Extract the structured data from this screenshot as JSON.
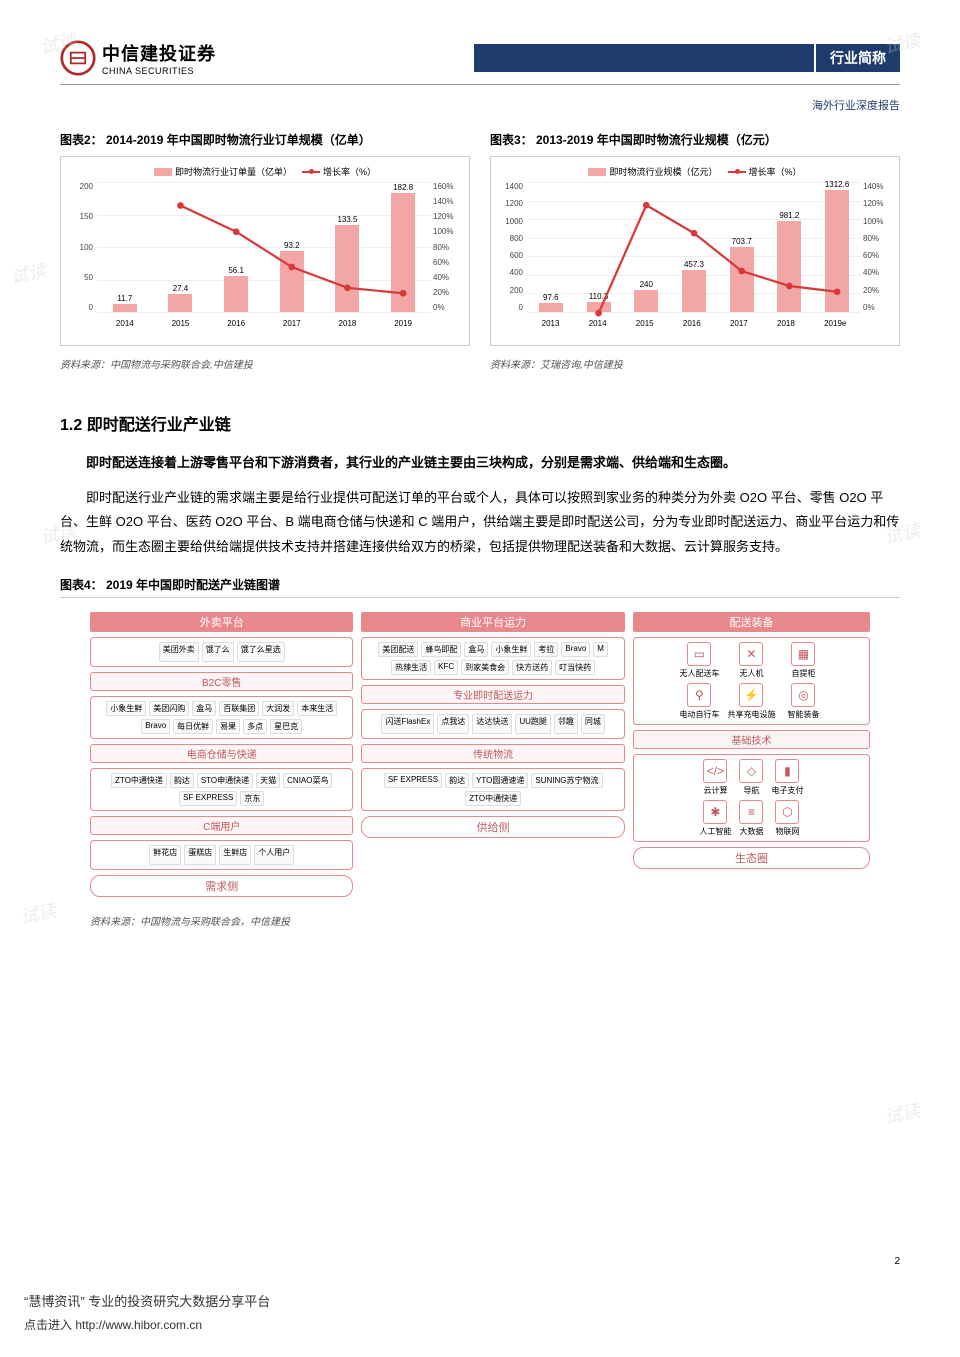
{
  "header": {
    "logo_cn": "中信建投证券",
    "logo_en": "CHINA SECURITIES",
    "tag": "行业简称",
    "subtitle": "海外行业深度报告"
  },
  "chart2": {
    "title": "图表2：  2014-2019 年中国即时物流行业订单规模（亿单）",
    "type": "bar+line",
    "legend_bar": "即时物流行业订单量（亿单）",
    "legend_line": "增长率（%）",
    "years": [
      "2014",
      "2015",
      "2016",
      "2017",
      "2018",
      "2019"
    ],
    "bars": [
      11.7,
      27.4,
      56.1,
      93.2,
      133.5,
      182.8
    ],
    "bar_labels": [
      "11.7",
      "27.4",
      "56.1",
      "93.2",
      "133.5",
      "182.8"
    ],
    "y_left_max": 200,
    "y_left_step": 50,
    "y_left_ticks": [
      "200",
      "150",
      "100",
      "50",
      "0"
    ],
    "y_right_ticks": [
      "160%",
      "140%",
      "120%",
      "100%",
      "80%",
      "60%",
      "40%",
      "20%",
      "0%"
    ],
    "y_right_max": 160,
    "line_values": [
      null,
      134,
      105,
      66,
      43,
      37
    ],
    "bar_color": "#f2a6a6",
    "line_color": "#d93838",
    "grid_color": "#eeeeee",
    "source": "资料来源：中国物流与采购联合会,中信建投"
  },
  "chart3": {
    "title": "图表3：  2013-2019 年中国即时物流行业规模（亿元）",
    "type": "bar+line",
    "legend_bar": "即时物流行业规模（亿元）",
    "legend_line": "增长率（%）",
    "years": [
      "2013",
      "2014",
      "2015",
      "2016",
      "2017",
      "2018",
      "2019e"
    ],
    "bars": [
      97.6,
      110.3,
      240,
      457.3,
      703.7,
      981.2,
      1312.6
    ],
    "bar_labels": [
      "97.6",
      "110.3",
      "240",
      "457.3",
      "703.7",
      "981.2",
      "1312.6"
    ],
    "y_left_max": 1400,
    "y_left_step": 200,
    "y_left_ticks": [
      "1400",
      "1200",
      "1000",
      "800",
      "600",
      "400",
      "200",
      "0"
    ],
    "y_right_ticks": [
      "140%",
      "120%",
      "100%",
      "80%",
      "60%",
      "40%",
      "20%",
      "0%"
    ],
    "y_right_max": 140,
    "line_values": [
      null,
      13.1,
      117.6,
      90.5,
      53.9,
      39.4,
      33.8
    ],
    "line_labels": [
      "",
      "13.1%",
      "117.6%",
      "90.5%",
      "53.9%",
      "39.4%",
      "33.8%"
    ],
    "bar_color": "#f2a6a6",
    "line_color": "#d93838",
    "source": "资料来源：艾瑞咨询,中信建投"
  },
  "section": {
    "title": "1.2 即时配送行业产业链",
    "p1": "即时配送连接着上游零售平台和下游消费者，其行业的产业链主要由三块构成，分别是需求端、供给端和生态圈。",
    "p2": "即时配送行业产业链的需求端主要是给行业提供可配送订单的平台或个人，具体可以按照到家业务的种类分为外卖 O2O 平台、零售 O2O 平台、生鲜 O2O 平台、医药 O2O 平台、B 端电商仓储与快递和 C 端用户，供给端主要是即时配送公司，分为专业即时配送运力、商业平台运力和传统物流，而生态圈主要给供给端提供技术支持并搭建连接供给双方的桥梁，包括提供物理配送装备和大数据、云计算服务支持。"
  },
  "fig4": {
    "title": "图表4：  2019 年中国即时配送产业链图谱",
    "source": "资料来源：中国物流与采购联合会，中信建投",
    "demand_label": "需求侧",
    "supply_label": "供给侧",
    "eco_label": "生态圈",
    "demand": {
      "waimai": {
        "header": "外卖平台",
        "brands": [
          "美团外卖",
          "饿了么",
          "饿了么星选"
        ]
      },
      "b2c": {
        "header": "B2C零售",
        "brands": [
          "小象生鲜",
          "美团闪购",
          "盒马",
          "百联集团",
          "大润发",
          "本来生活",
          "Bravo",
          "每日优鲜",
          "易果",
          "多点",
          "星巴克"
        ]
      },
      "cangchu": {
        "header": "电商仓储与快递",
        "brands": [
          "ZTO中通快递",
          "韵达",
          "STO申通快递",
          "天猫",
          "CNIAO菜鸟",
          "SF EXPRESS",
          "京东"
        ]
      },
      "cuser": {
        "header": "C端用户",
        "brands": [
          "鲜花店",
          "蛋糕店",
          "生鲜店",
          "个人用户"
        ]
      }
    },
    "supply": {
      "bizplat": {
        "header": "商业平台运力",
        "brands": [
          "美团配送",
          "蜂鸟即配",
          "盒马",
          "小象生鲜",
          "考拉",
          "Bravo",
          "M",
          "热辣生活",
          "KFC",
          "到家美食会",
          "快方送药",
          "叮当快药"
        ]
      },
      "pro": {
        "header": "专业即时配送运力",
        "brands": [
          "闪送FlashEx",
          "点我达",
          "达达快送",
          "UU跑腿",
          "邻趣",
          "同城"
        ]
      },
      "trad": {
        "header": "传统物流",
        "brands": [
          "SF EXPRESS",
          "韵达",
          "YTO圆通速递",
          "SUNING苏宁物流",
          "ZTO中通快递"
        ]
      }
    },
    "eco": {
      "equip": {
        "header": "配送装备",
        "items": [
          "无人配送车",
          "无人机",
          "自提柜",
          "电动自行车",
          "共享充电设施",
          "智能装备"
        ]
      },
      "tech": {
        "header": "基础技术",
        "items": [
          "云计算",
          "导航",
          "电子支付",
          "人工智能",
          "大数据",
          "物联网"
        ]
      }
    }
  },
  "footer": {
    "line1": "“慧博资讯” 专业的投资研究大数据分享平台",
    "line2": "点击进入 http://www.hibor.com.cn"
  },
  "page_number": "2",
  "watermark": "试读",
  "colors": {
    "navy": "#1f3b6b",
    "brand_pink": "#e8888c",
    "bar": "#f2a6a6",
    "line": "#d93838"
  }
}
